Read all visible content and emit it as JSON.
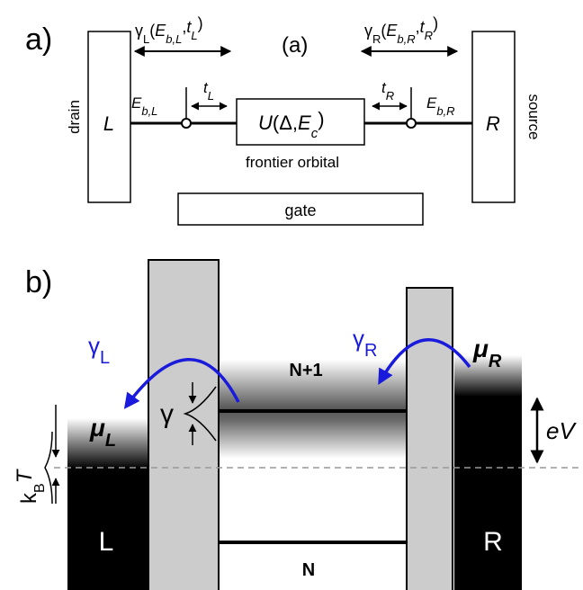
{
  "panel_a": {
    "label": "a)",
    "caption": "(a)",
    "gamma_left": [
      "γ",
      "L",
      "(",
      "E",
      "b,L",
      ",",
      "t",
      "L",
      ")"
    ],
    "gamma_right": [
      "γ",
      "R",
      "(",
      "E",
      "b,R",
      ",",
      "t",
      "R",
      ")"
    ],
    "drain": "drain",
    "source": "source",
    "left_lead": "L",
    "right_lead": "R",
    "e_left": [
      "E",
      "b,L"
    ],
    "e_right": [
      "E",
      "b,R"
    ],
    "t_left": [
      "t",
      "L"
    ],
    "t_right": [
      "t",
      "R"
    ],
    "orbital": [
      "U",
      "(Δ,",
      "E",
      "c",
      ")"
    ],
    "orbital_caption": "frontier orbital",
    "gate": "gate"
  },
  "panel_b": {
    "label": "b)",
    "gamma_left": [
      "γ",
      "L"
    ],
    "gamma_right": [
      "γ",
      "R"
    ],
    "mu_left": [
      "μ",
      "L"
    ],
    "mu_right": [
      "μ",
      "R"
    ],
    "upper_level": "N+1",
    "lower_level": "N",
    "broadening": "γ",
    "thermal": [
      "k",
      "B",
      "T"
    ],
    "bias": "eV",
    "left_lead": "L",
    "right_lead": "R"
  }
}
